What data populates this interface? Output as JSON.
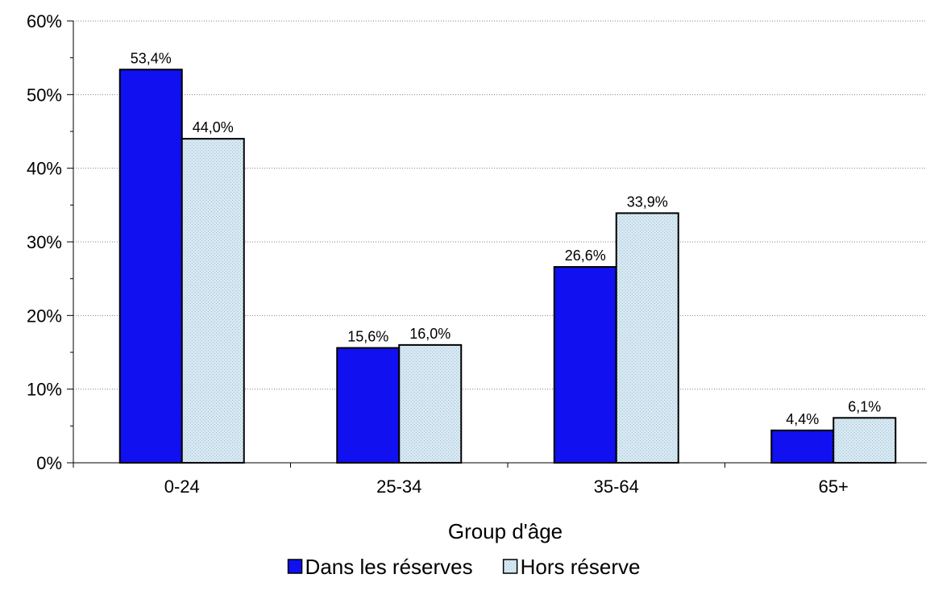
{
  "chart_data": {
    "type": "bar",
    "title": "",
    "xlabel": "Group d'âge",
    "ylabel": "",
    "categories": [
      "0-24",
      "25-34",
      "35-64",
      "65+"
    ],
    "series": [
      {
        "name": "Dans les réserves",
        "values": [
          53.4,
          15.6,
          26.6,
          4.4
        ],
        "labels": [
          "53,4%",
          "15,6%",
          "26,6%",
          "4,4%"
        ],
        "color": "#1010f0",
        "pattern": "solid"
      },
      {
        "name": "Hors réserve",
        "values": [
          44.0,
          16.0,
          33.9,
          6.1
        ],
        "labels": [
          "44,0%",
          "16,0%",
          "33,9%",
          "6,1%"
        ],
        "color": "#cfe3ef",
        "pattern": "dotted"
      }
    ],
    "ylim": [
      0,
      60
    ],
    "yticks": [
      0,
      10,
      20,
      30,
      40,
      50,
      60
    ],
    "ytick_labels": [
      "0%",
      "10%",
      "20%",
      "30%",
      "40%",
      "50%",
      "60%"
    ],
    "grid": true,
    "legend_position": "bottom"
  }
}
